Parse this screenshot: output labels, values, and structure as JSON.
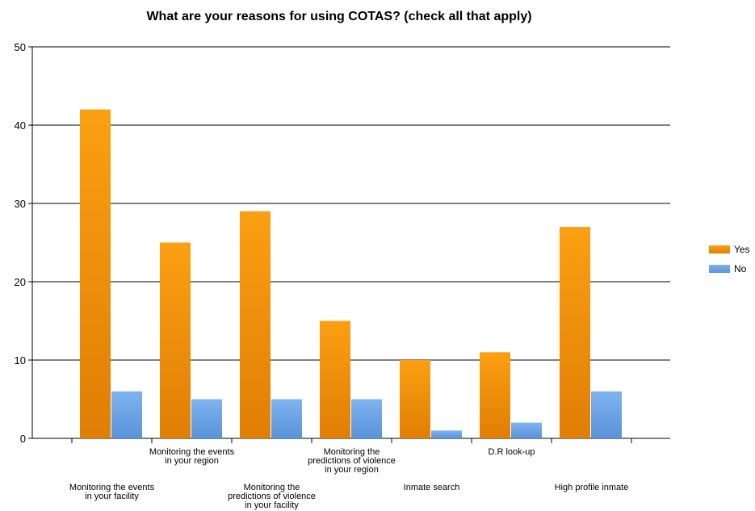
{
  "chart_data": {
    "type": "bar",
    "title": "What are your reasons for using COTAS? (check all that apply)",
    "xlabel": "",
    "ylabel": "",
    "ylim": [
      0,
      50
    ],
    "yticks": [
      0,
      10,
      20,
      30,
      40,
      50
    ],
    "grid": true,
    "legend_position": "right",
    "categories": [
      "Monitoring the events in your facility",
      "Monitoring the events in your region",
      "Monitoring the predictions of violence in your facility",
      "Monitoring the predictions of violence in your region",
      "Inmate search",
      "D.R look-up",
      "High profile inmate"
    ],
    "category_label_lines": [
      [
        "Monitoring the events",
        "in your facility"
      ],
      [
        "Monitoring the events",
        "in your region"
      ],
      [
        "Monitoring the",
        "predictions of violence",
        "in your facility"
      ],
      [
        "Monitoring the",
        "predictions of violence",
        "in your region"
      ],
      [
        "Inmate search"
      ],
      [
        "D.R look-up"
      ],
      [
        "High profile inmate"
      ]
    ],
    "series": [
      {
        "name": "Yes",
        "color": "#F39200",
        "values": [
          42,
          25,
          29,
          15,
          10,
          11,
          27
        ]
      },
      {
        "name": "No",
        "color": "#6FA8EC",
        "values": [
          6,
          5,
          5,
          5,
          1,
          2,
          6
        ]
      }
    ]
  }
}
